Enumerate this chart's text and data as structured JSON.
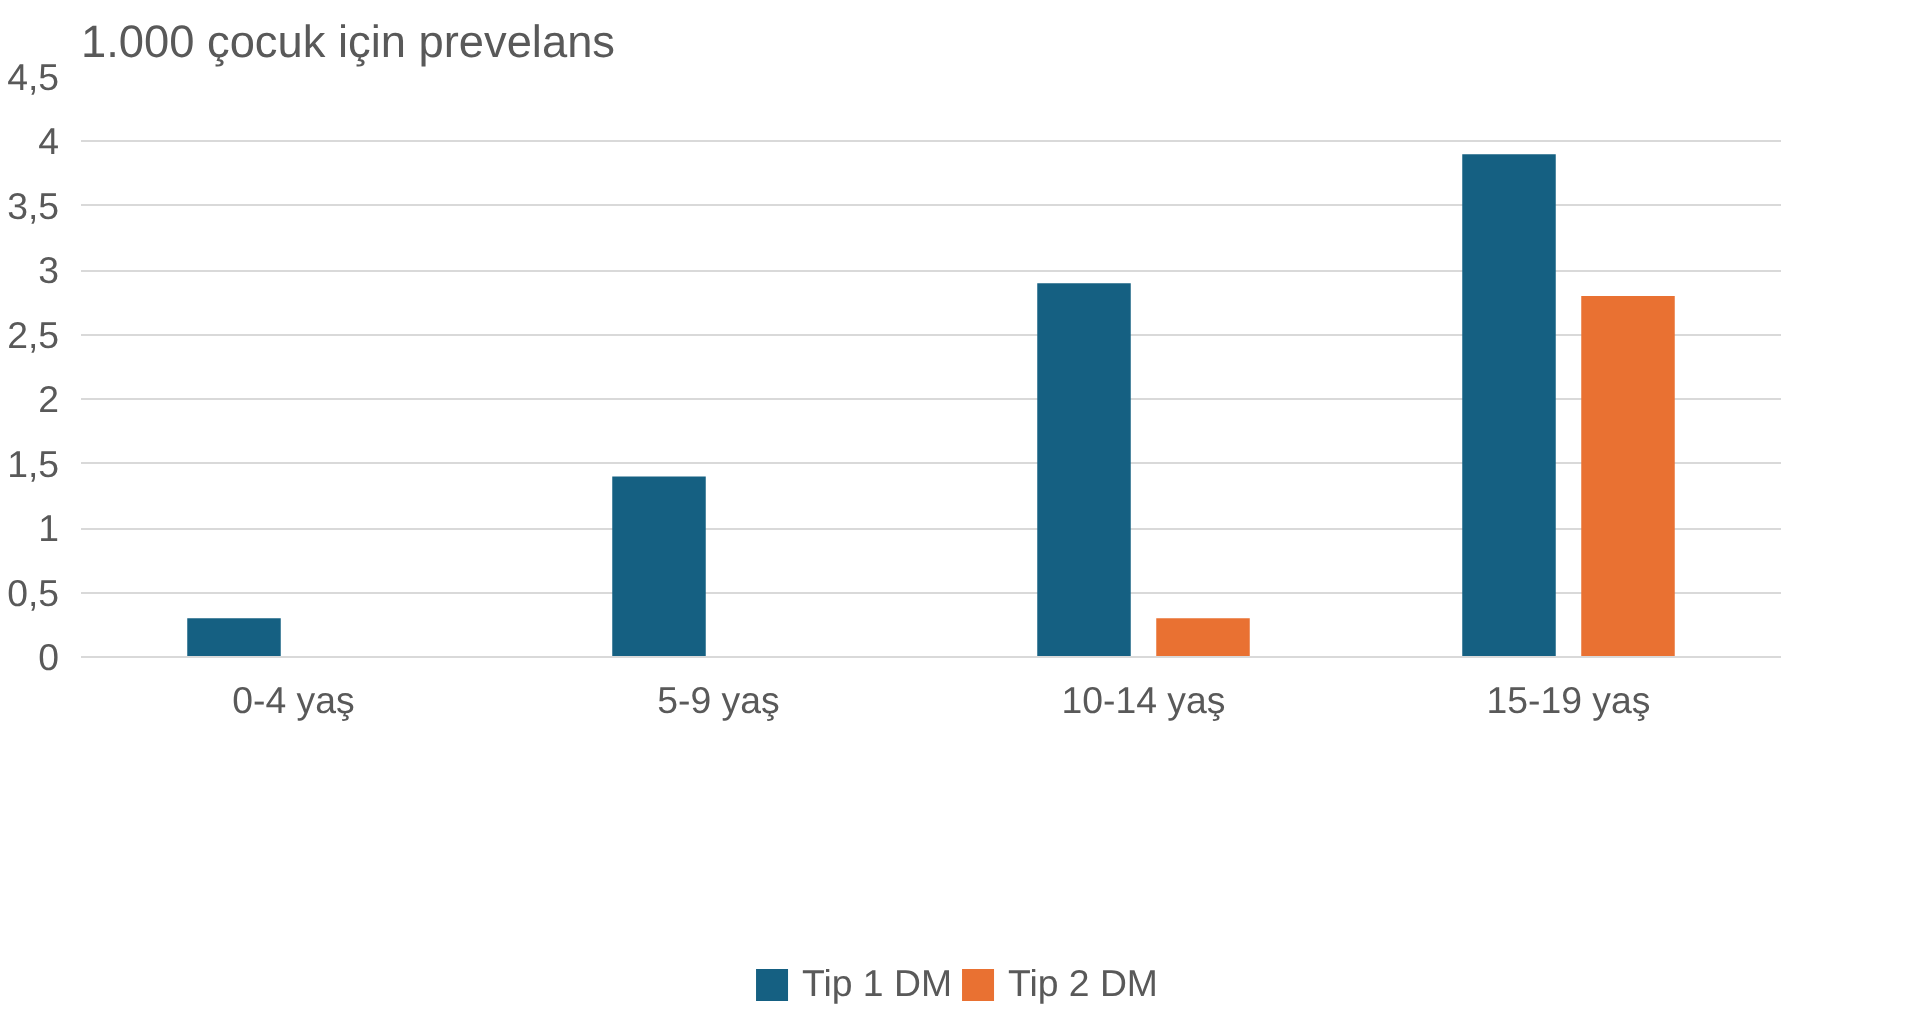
{
  "chart_data": {
    "type": "bar",
    "title": "1.000 çocuk için prevelans",
    "categories": [
      "0-4 yaş",
      "5-9 yaş",
      "10-14 yaş",
      "15-19 yaş"
    ],
    "series": [
      {
        "name": "Tip 1 DM",
        "color": "#156082",
        "values": [
          0.3,
          1.4,
          2.9,
          3.9
        ]
      },
      {
        "name": "Tip 2 DM",
        "color": "#e97132",
        "values": [
          null,
          null,
          0.3,
          2.8
        ]
      }
    ],
    "ylim": [
      0,
      4.5
    ],
    "yticks": [
      0,
      {
        "value": 0.5,
        "label": "0,5"
      },
      1,
      {
        "value": 1.5,
        "label": "1,5"
      },
      2,
      {
        "value": 2.5,
        "label": "2,5"
      },
      3,
      {
        "value": 3.5,
        "label": "3,5"
      },
      4,
      {
        "value": 4.5,
        "label": "4,5"
      }
    ],
    "grid": "y",
    "legend": "bottom"
  }
}
